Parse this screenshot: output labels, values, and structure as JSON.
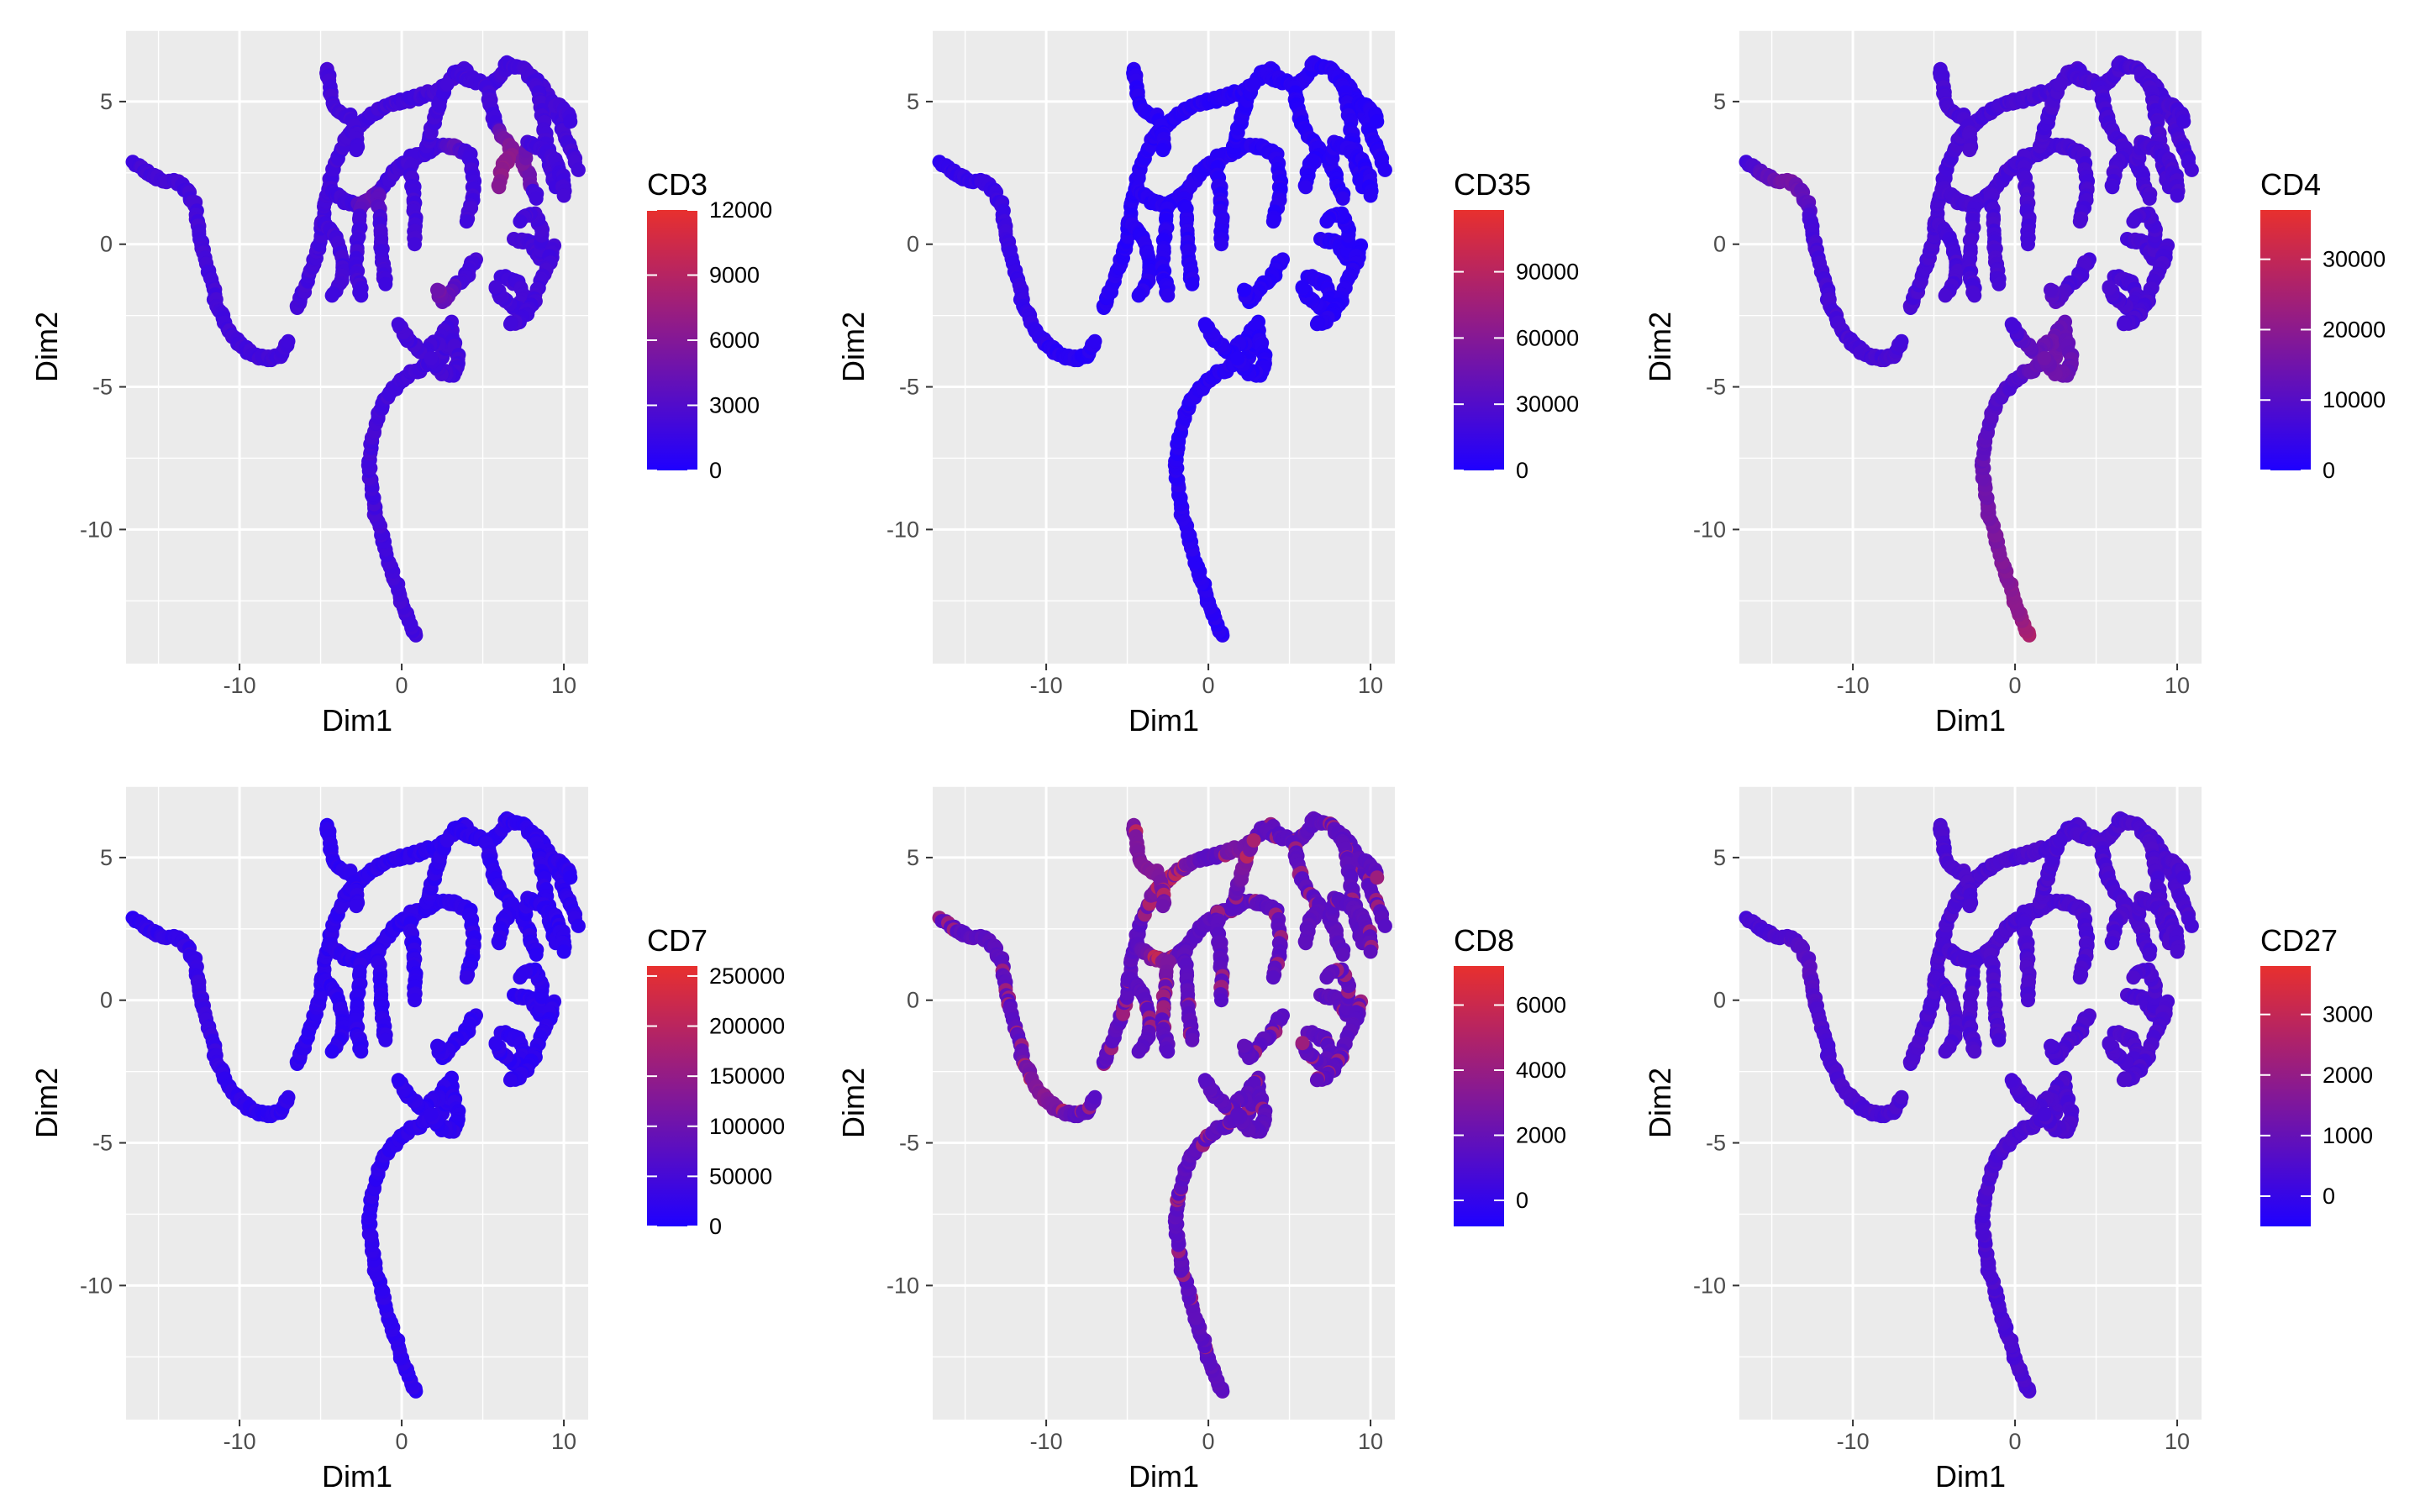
{
  "colors": {
    "low": "#1f00ff",
    "high": "#e8302e",
    "panel_bg": "#ebebeb",
    "grid": "#ffffff"
  },
  "chart_data": [
    {
      "type": "scatter",
      "title": "",
      "xlabel": "Dim1",
      "ylabel": "Dim2",
      "xlim": [
        -17,
        11.5
      ],
      "ylim": [
        -14.7,
        7.5
      ],
      "x_ticks": [
        {
          "value": -10,
          "label": "-10"
        },
        {
          "value": 0,
          "label": "0"
        },
        {
          "value": 10,
          "label": "10"
        }
      ],
      "y_ticks": [
        {
          "value": 5,
          "label": "5"
        },
        {
          "value": 0,
          "label": "0"
        },
        {
          "value": -5,
          "label": "-5"
        },
        {
          "value": -10,
          "label": "-10"
        }
      ],
      "grid": true,
      "legend": {
        "title": "CD3",
        "placement": "right",
        "min": 0,
        "max": 12000,
        "ticks": [
          {
            "value": 12000,
            "label": "12000"
          },
          {
            "value": 9000,
            "label": "9000"
          },
          {
            "value": 6000,
            "label": "6000"
          },
          {
            "value": 3000,
            "label": "3000"
          },
          {
            "value": 0,
            "label": "0"
          }
        ]
      },
      "color_profile": {
        "base": 0.18,
        "high_regions": [
          {
            "x": 6.5,
            "y": 2.5,
            "r": 1.6,
            "v": 0.62
          },
          {
            "x": 2.5,
            "y": -1.5,
            "r": 0.8,
            "v": 0.45
          },
          {
            "x": -2,
            "y": 1.7,
            "r": 0.9,
            "v": 0.4
          },
          {
            "x": 3.3,
            "y": 3.5,
            "r": 0.6,
            "v": 0.35
          }
        ]
      }
    },
    {
      "type": "scatter",
      "title": "",
      "xlabel": "Dim1",
      "ylabel": "Dim2",
      "xlim": [
        -17,
        11.5
      ],
      "ylim": [
        -14.7,
        7.5
      ],
      "x_ticks": [
        {
          "value": -10,
          "label": "-10"
        },
        {
          "value": 0,
          "label": "0"
        },
        {
          "value": 10,
          "label": "10"
        }
      ],
      "y_ticks": [
        {
          "value": 5,
          "label": "5"
        },
        {
          "value": 0,
          "label": "0"
        },
        {
          "value": -5,
          "label": "-5"
        },
        {
          "value": -10,
          "label": "-10"
        }
      ],
      "grid": true,
      "legend": {
        "title": "CD35",
        "placement": "right",
        "min": 0,
        "max": 118000,
        "ticks": [
          {
            "value": 90000,
            "label": "90000"
          },
          {
            "value": 60000,
            "label": "60000"
          },
          {
            "value": 30000,
            "label": "30000"
          },
          {
            "value": 0,
            "label": "0"
          }
        ]
      },
      "color_profile": {
        "base": 0.05,
        "high_regions": [
          {
            "x": -12,
            "y": 1,
            "r": 5,
            "v": 0.15
          }
        ]
      }
    },
    {
      "type": "scatter",
      "title": "",
      "xlabel": "Dim1",
      "ylabel": "Dim2",
      "xlim": [
        -17,
        11.5
      ],
      "ylim": [
        -14.7,
        7.5
      ],
      "x_ticks": [
        {
          "value": -10,
          "label": "-10"
        },
        {
          "value": 0,
          "label": "0"
        },
        {
          "value": 10,
          "label": "10"
        }
      ],
      "y_ticks": [
        {
          "value": 5,
          "label": "5"
        },
        {
          "value": 0,
          "label": "0"
        },
        {
          "value": -5,
          "label": "-5"
        },
        {
          "value": -10,
          "label": "-10"
        }
      ],
      "grid": true,
      "legend": {
        "title": "CD4",
        "placement": "right",
        "min": 0,
        "max": 37000,
        "ticks": [
          {
            "value": 30000,
            "label": "30000"
          },
          {
            "value": 20000,
            "label": "20000"
          },
          {
            "value": 10000,
            "label": "10000"
          },
          {
            "value": 0,
            "label": "0"
          }
        ]
      },
      "color_profile": {
        "base": 0.2,
        "gradient_tail": true,
        "high_regions": [
          {
            "x": 1,
            "y": -13.5,
            "r": 1.5,
            "v": 0.75
          },
          {
            "x": -14,
            "y": 2.3,
            "r": 1.8,
            "v": 0.45
          },
          {
            "x": 2.5,
            "y": -4,
            "r": 2.5,
            "v": 0.42
          }
        ]
      }
    },
    {
      "type": "scatter",
      "title": "",
      "xlabel": "Dim1",
      "ylabel": "Dim2",
      "xlim": [
        -17,
        11.5
      ],
      "ylim": [
        -14.7,
        7.5
      ],
      "x_ticks": [
        {
          "value": -10,
          "label": "-10"
        },
        {
          "value": 0,
          "label": "0"
        },
        {
          "value": 10,
          "label": "10"
        }
      ],
      "y_ticks": [
        {
          "value": 5,
          "label": "5"
        },
        {
          "value": 0,
          "label": "0"
        },
        {
          "value": -5,
          "label": "-5"
        },
        {
          "value": -10,
          "label": "-10"
        }
      ],
      "grid": true,
      "legend": {
        "title": "CD7",
        "placement": "right",
        "min": 0,
        "max": 260000,
        "ticks": [
          {
            "value": 250000,
            "label": "250000"
          },
          {
            "value": 200000,
            "label": "200000"
          },
          {
            "value": 150000,
            "label": "150000"
          },
          {
            "value": 100000,
            "label": "100000"
          },
          {
            "value": 50000,
            "label": "50000"
          },
          {
            "value": 0,
            "label": "0"
          }
        ]
      },
      "color_profile": {
        "base": 0.08,
        "high_regions": [
          {
            "x": -12,
            "y": 0,
            "r": 5,
            "v": 0.14
          }
        ]
      }
    },
    {
      "type": "scatter",
      "title": "",
      "xlabel": "Dim1",
      "ylabel": "Dim2",
      "xlim": [
        -17,
        11.5
      ],
      "ylim": [
        -14.7,
        7.5
      ],
      "x_ticks": [
        {
          "value": -10,
          "label": "-10"
        },
        {
          "value": 0,
          "label": "0"
        },
        {
          "value": 10,
          "label": "10"
        }
      ],
      "y_ticks": [
        {
          "value": 5,
          "label": "5"
        },
        {
          "value": 0,
          "label": "0"
        },
        {
          "value": -5,
          "label": "-5"
        },
        {
          "value": -10,
          "label": "-10"
        }
      ],
      "grid": true,
      "legend": {
        "title": "CD8",
        "placement": "right",
        "min": -800,
        "max": 7200,
        "ticks": [
          {
            "value": 6000,
            "label": "6000"
          },
          {
            "value": 4000,
            "label": "4000"
          },
          {
            "value": 2000,
            "label": "2000"
          },
          {
            "value": 0,
            "label": "0"
          }
        ]
      },
      "color_profile": {
        "base": 0.3,
        "speckle": 0.35,
        "high_regions": [
          {
            "x": -3,
            "y": 5.5,
            "r": 2.5,
            "v": 0.6
          },
          {
            "x": -10,
            "y": -3,
            "r": 2,
            "v": 0.55
          },
          {
            "x": -3,
            "y": 1.5,
            "r": 1.2,
            "v": 0.55
          },
          {
            "x": 2,
            "y": 5,
            "r": 1.5,
            "v": 0.5
          }
        ]
      }
    },
    {
      "type": "scatter",
      "title": "",
      "xlabel": "Dim1",
      "ylabel": "Dim2",
      "xlim": [
        -17,
        11.5
      ],
      "ylim": [
        -14.7,
        7.5
      ],
      "x_ticks": [
        {
          "value": -10,
          "label": "-10"
        },
        {
          "value": 0,
          "label": "0"
        },
        {
          "value": 10,
          "label": "10"
        }
      ],
      "y_ticks": [
        {
          "value": 5,
          "label": "5"
        },
        {
          "value": 0,
          "label": "0"
        },
        {
          "value": -5,
          "label": "-5"
        },
        {
          "value": -10,
          "label": "-10"
        }
      ],
      "grid": true,
      "legend": {
        "title": "CD27",
        "placement": "right",
        "min": -500,
        "max": 3800,
        "ticks": [
          {
            "value": 3000,
            "label": "3000"
          },
          {
            "value": 2000,
            "label": "2000"
          },
          {
            "value": 1000,
            "label": "1000"
          },
          {
            "value": 0,
            "label": "0"
          }
        ]
      },
      "color_profile": {
        "base": 0.22,
        "high_regions": [
          {
            "x": -13,
            "y": 1,
            "r": 4,
            "v": 0.3
          }
        ]
      }
    }
  ],
  "trajectory": {
    "branches": [
      [
        [
          -16.5,
          2.8
        ],
        [
          -15.5,
          2.4
        ],
        [
          -14.5,
          2.2
        ],
        [
          -13.5,
          2.1
        ],
        [
          -12.8,
          1.4
        ],
        [
          -12.3,
          0
        ],
        [
          -11.8,
          -1.2
        ],
        [
          -11.3,
          -2.3
        ],
        [
          -10.6,
          -3.1
        ],
        [
          -9.8,
          -3.6
        ],
        [
          -9,
          -3.9
        ],
        [
          -8.2,
          -4
        ],
        [
          -7.5,
          -3.9
        ],
        [
          -7,
          -3.4
        ]
      ],
      [
        [
          0.9,
          -13.8
        ],
        [
          0.5,
          -13.2
        ],
        [
          0,
          -12.5
        ],
        [
          -0.6,
          -11.5
        ],
        [
          -1.1,
          -10.5
        ],
        [
          -1.6,
          -9.5
        ],
        [
          -1.9,
          -8.5
        ],
        [
          -2,
          -7.5
        ],
        [
          -1.7,
          -6.5
        ],
        [
          -1.3,
          -5.7
        ],
        [
          -0.6,
          -5.1
        ],
        [
          0.4,
          -4.6
        ],
        [
          1.5,
          -4.3
        ],
        [
          2.5,
          -3.9
        ],
        [
          3.1,
          -3.2
        ],
        [
          3,
          -2.8
        ],
        [
          2.2,
          -3.4
        ],
        [
          1.3,
          -3.8
        ],
        [
          0.5,
          -3.4
        ],
        [
          -0.2,
          -2.8
        ]
      ],
      [
        [
          3.1,
          -3.2
        ],
        [
          3.5,
          -4
        ],
        [
          3.2,
          -4.6
        ],
        [
          2.4,
          -4.5
        ],
        [
          1.8,
          -4
        ]
      ],
      [
        [
          -6.5,
          -2.3
        ],
        [
          -5.8,
          -1.3
        ],
        [
          -5.2,
          -0.3
        ],
        [
          -4.9,
          0.8
        ],
        [
          -4.5,
          2
        ],
        [
          -4,
          3
        ],
        [
          -3.3,
          3.8
        ],
        [
          -2.3,
          4.3
        ],
        [
          -1.2,
          4.8
        ],
        [
          0,
          5
        ],
        [
          1.2,
          5.2
        ],
        [
          2.4,
          5.4
        ],
        [
          3.3,
          6
        ],
        [
          4,
          6.1
        ]
      ],
      [
        [
          -4.6,
          6.2
        ],
        [
          -4.4,
          5.6
        ],
        [
          -4.3,
          4.9
        ],
        [
          -3.8,
          4.6
        ],
        [
          -3.2,
          4.5
        ],
        [
          -2.8,
          4
        ],
        [
          -2.8,
          3.3
        ]
      ],
      [
        [
          -4.9,
          0.8
        ],
        [
          -4.2,
          0.4
        ],
        [
          -3.7,
          -0.3
        ],
        [
          -3.6,
          -1
        ],
        [
          -4,
          -1.6
        ],
        [
          -4.3,
          -1.8
        ]
      ],
      [
        [
          -4.5,
          2
        ],
        [
          -3.5,
          1.5
        ],
        [
          -2.5,
          1.3
        ],
        [
          -1.5,
          1.8
        ],
        [
          -0.5,
          2.5
        ],
        [
          0.5,
          3
        ],
        [
          1.5,
          3.2
        ],
        [
          2.4,
          3.5
        ],
        [
          3.3,
          3.4
        ],
        [
          4.2,
          3.1
        ],
        [
          4.4,
          2.4
        ],
        [
          4.4,
          1.6
        ],
        [
          4,
          0.8
        ]
      ],
      [
        [
          -2.5,
          1.3
        ],
        [
          -2.7,
          0.3
        ],
        [
          -2.8,
          -0.8
        ],
        [
          -2.5,
          -1.8
        ]
      ],
      [
        [
          -1.5,
          1.8
        ],
        [
          -1.3,
          0.8
        ],
        [
          -1.2,
          -0.3
        ],
        [
          -1,
          -1.4
        ]
      ],
      [
        [
          0.5,
          3
        ],
        [
          0.7,
          2
        ],
        [
          0.8,
          1
        ],
        [
          0.8,
          0
        ]
      ],
      [
        [
          1.5,
          3.2
        ],
        [
          1.9,
          4.2
        ],
        [
          2.4,
          5.1
        ],
        [
          2.8,
          5.6
        ]
      ],
      [
        [
          3.3,
          6
        ],
        [
          4.2,
          5.8
        ],
        [
          5.2,
          5.6
        ],
        [
          6,
          5.8
        ],
        [
          6.5,
          6.3
        ],
        [
          7.3,
          6.2
        ],
        [
          8.3,
          5.7
        ],
        [
          9.3,
          5
        ],
        [
          10,
          4
        ],
        [
          10.5,
          3.2
        ],
        [
          10.9,
          2.6
        ]
      ],
      [
        [
          5.2,
          5.6
        ],
        [
          5.6,
          4.6
        ],
        [
          6.1,
          3.8
        ],
        [
          6.8,
          3.3
        ],
        [
          7.5,
          2.9
        ],
        [
          7.9,
          2.3
        ],
        [
          8.3,
          1.6
        ]
      ],
      [
        [
          6.8,
          3.3
        ],
        [
          6.2,
          2.7
        ],
        [
          6,
          2
        ]
      ],
      [
        [
          8.3,
          5.7
        ],
        [
          8.7,
          4.6
        ],
        [
          8.9,
          3.6
        ],
        [
          9.2,
          2.7
        ],
        [
          9.5,
          2
        ]
      ],
      [
        [
          7.5,
          2.9
        ],
        [
          7.8,
          3.5
        ],
        [
          8.6,
          3.4
        ],
        [
          9.4,
          3
        ],
        [
          9.9,
          2.4
        ],
        [
          10,
          1.7
        ]
      ],
      [
        [
          9.3,
          5
        ],
        [
          10,
          4.8
        ],
        [
          10.4,
          4.3
        ]
      ],
      [
        [
          7,
          0.2
        ],
        [
          8,
          0
        ],
        [
          8.5,
          -0.5
        ],
        [
          8.7,
          0.5
        ],
        [
          8.2,
          1.1
        ],
        [
          7.3,
          0.8
        ]
      ],
      [
        [
          6.2,
          -1.1
        ],
        [
          7.2,
          -1.4
        ],
        [
          7.6,
          -1.9
        ],
        [
          7,
          -2.2
        ],
        [
          6.2,
          -1.9
        ],
        [
          5.8,
          -1.5
        ]
      ],
      [
        [
          4.5,
          -0.5
        ],
        [
          3.9,
          -1.2
        ],
        [
          3.1,
          -1.6
        ],
        [
          2.6,
          -2
        ],
        [
          2.2,
          -1.6
        ]
      ],
      [
        [
          9.4,
          -0.1
        ],
        [
          8.8,
          -1.1
        ],
        [
          8.1,
          -2
        ],
        [
          7.5,
          -2.6
        ],
        [
          6.7,
          -2.8
        ]
      ]
    ]
  }
}
